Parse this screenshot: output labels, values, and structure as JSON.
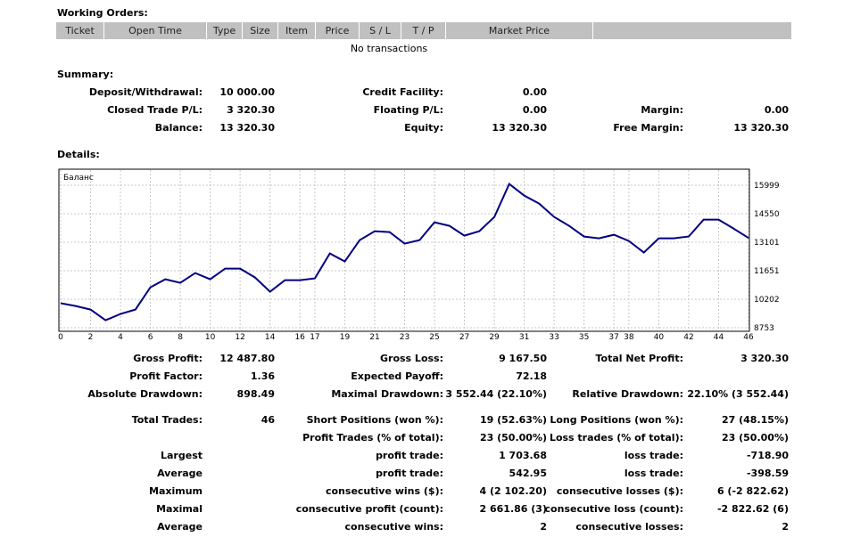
{
  "working_orders": {
    "title": "Working Orders:",
    "headers": [
      "Ticket",
      "Open Time",
      "Type",
      "Size",
      "Item",
      "Price",
      "S / L",
      "T / P",
      "Market Price"
    ],
    "empty_text": "No transactions"
  },
  "summary": {
    "title": "Summary:",
    "rows": [
      [
        [
          "Deposit/Withdrawal:",
          "10 000.00"
        ],
        [
          "Credit Facility:",
          "0.00"
        ],
        null
      ],
      [
        [
          "Closed Trade P/L:",
          "3 320.30"
        ],
        [
          "Floating P/L:",
          "0.00"
        ],
        [
          "Margin:",
          "0.00"
        ]
      ],
      [
        [
          "Balance:",
          "13 320.30"
        ],
        [
          "Equity:",
          "13 320.30"
        ],
        [
          "Free Margin:",
          "13 320.30"
        ]
      ]
    ]
  },
  "details": {
    "title": "Details:"
  },
  "chart_data": {
    "type": "line",
    "legend_label": "Баланс",
    "x": [
      0,
      1,
      2,
      3,
      4,
      5,
      6,
      7,
      8,
      9,
      10,
      11,
      12,
      13,
      14,
      15,
      16,
      17,
      18,
      19,
      20,
      21,
      22,
      23,
      24,
      25,
      26,
      27,
      28,
      29,
      30,
      31,
      32,
      33,
      34,
      35,
      36,
      37,
      38,
      39,
      40,
      41,
      42,
      43,
      44,
      45,
      46
    ],
    "series": [
      {
        "color": "#000080",
        "values": [
          10000,
          9859,
          9678,
          9135,
          9452,
          9678,
          10810,
          11218,
          11037,
          11535,
          11218,
          11762,
          11762,
          11309,
          10584,
          11173,
          11173,
          11263,
          12531,
          12124,
          13211,
          13664,
          13618,
          13030,
          13211,
          14117,
          13935,
          13437,
          13664,
          14388,
          16064,
          15475,
          15068,
          14388,
          13935,
          13392,
          13301,
          13483,
          13166,
          12577,
          13301,
          13301,
          13392,
          14253,
          14253,
          13800,
          13320
        ]
      }
    ],
    "xlim": [
      0,
      46
    ],
    "xticks": [
      0,
      2,
      4,
      6,
      8,
      10,
      12,
      14,
      16,
      17,
      19,
      21,
      23,
      25,
      27,
      29,
      31,
      33,
      35,
      37,
      38,
      40,
      42,
      44,
      46
    ],
    "ylim": [
      8572,
      16724
    ],
    "yticks": [
      8753,
      10202,
      11651,
      13101,
      14550,
      15999
    ],
    "grid": true
  },
  "statistics": {
    "groups": [
      {
        "rows": [
          [
            [
              "Gross Profit:",
              "12 487.80"
            ],
            [
              "Gross Loss:",
              "9 167.50"
            ],
            [
              "Total Net Profit:",
              "3 320.30"
            ]
          ],
          [
            [
              "Profit Factor:",
              "1.36"
            ],
            [
              "Expected Payoff:",
              "72.18"
            ],
            null
          ],
          [
            [
              "Absolute Drawdown:",
              "898.49"
            ],
            [
              "Maximal Drawdown:",
              "3 552.44 (22.10%)"
            ],
            [
              "Relative Drawdown:",
              "22.10% (3 552.44)"
            ]
          ]
        ]
      },
      {
        "rows": [
          [
            [
              "Total Trades:",
              "46"
            ],
            [
              "Short Positions (won %):",
              "19 (52.63%)"
            ],
            [
              "Long Positions (won %):",
              "27 (48.15%)"
            ]
          ],
          [
            null,
            [
              "Profit Trades (% of total):",
              "23 (50.00%)"
            ],
            [
              "Loss trades (% of total):",
              "23 (50.00%)"
            ]
          ],
          [
            [
              "Largest"
            ],
            [
              "profit trade:",
              "1 703.68"
            ],
            [
              "loss trade:",
              "-718.90"
            ]
          ],
          [
            [
              "Average"
            ],
            [
              "profit trade:",
              "542.95"
            ],
            [
              "loss trade:",
              "-398.59"
            ]
          ],
          [
            [
              "Maximum"
            ],
            [
              "consecutive wins ($):",
              "4 (2 102.20)"
            ],
            [
              "consecutive losses ($):",
              "6 (-2 822.62)"
            ]
          ],
          [
            [
              "Maximal"
            ],
            [
              "consecutive profit (count):",
              "2 661.86 (3)"
            ],
            [
              "consecutive loss (count):",
              "-2 822.62 (6)"
            ]
          ],
          [
            [
              "Average"
            ],
            [
              "consecutive wins:",
              "2"
            ],
            [
              "consecutive losses:",
              "2"
            ]
          ]
        ]
      }
    ]
  }
}
